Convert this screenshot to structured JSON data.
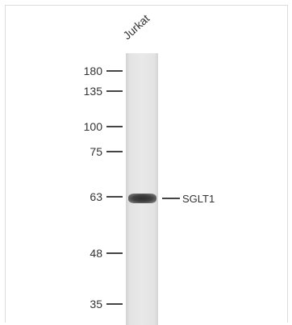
{
  "lane_label": "Jurkat",
  "markers": [
    {
      "label": "180",
      "kda": 180
    },
    {
      "label": "135",
      "kda": 135
    },
    {
      "label": "100",
      "kda": 100
    },
    {
      "label": "75",
      "kda": 75
    },
    {
      "label": "63",
      "kda": 63
    },
    {
      "label": "48",
      "kda": 48
    },
    {
      "label": "35",
      "kda": 35
    }
  ],
  "target": {
    "label": "SGLT1"
  }
}
